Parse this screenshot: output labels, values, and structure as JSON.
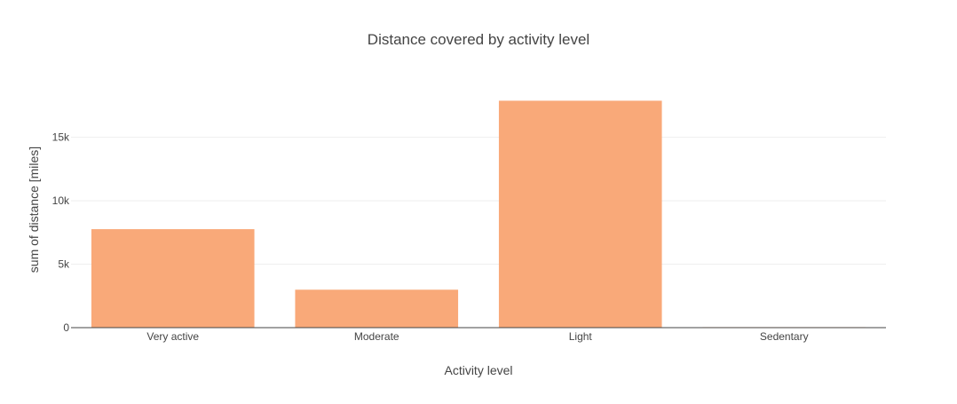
{
  "chart_data": {
    "type": "bar",
    "title": "Distance covered by activity level",
    "xlabel": "Activity level",
    "ylabel": "sum of distance [miles]",
    "categories": [
      "Very active",
      "Moderate",
      "Light",
      "Sedentary"
    ],
    "values": [
      7760,
      2990,
      17880,
      40
    ],
    "ylim": [
      0,
      18820
    ],
    "yticks": [
      0,
      5000,
      10000,
      15000
    ],
    "ytick_labels": [
      "0",
      "5k",
      "10k",
      "15k"
    ],
    "grid": true,
    "bar_color": "#f9a979",
    "grid_color": "#eeeeee",
    "zero_line_color": "#444444"
  }
}
